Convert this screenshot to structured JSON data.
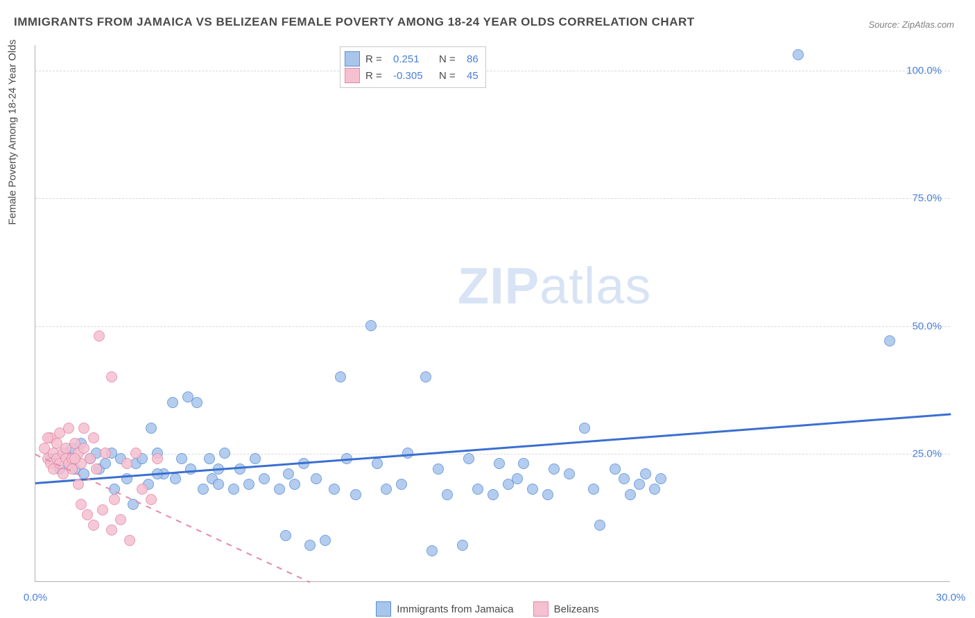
{
  "title": "IMMIGRANTS FROM JAMAICA VS BELIZEAN FEMALE POVERTY AMONG 18-24 YEAR OLDS CORRELATION CHART",
  "source": "Source: ZipAtlas.com",
  "yaxis_title": "Female Poverty Among 18-24 Year Olds",
  "watermark_a": "ZIP",
  "watermark_b": "atlas",
  "chart": {
    "type": "scatter",
    "xlim": [
      0,
      30
    ],
    "ylim": [
      0,
      105
    ],
    "xticks": [
      {
        "v": 0,
        "label": "0.0%"
      },
      {
        "v": 30,
        "label": "30.0%"
      }
    ],
    "yticks": [
      {
        "v": 25,
        "label": "25.0%"
      },
      {
        "v": 50,
        "label": "50.0%"
      },
      {
        "v": 75,
        "label": "75.0%"
      },
      {
        "v": 100,
        "label": "100.0%"
      }
    ],
    "grid_color": "#d8d8d8",
    "axis_color": "#b0b0b0",
    "background": "#ffffff",
    "marker_radius": 8,
    "marker_fill_opacity": 0.35,
    "series": [
      {
        "name": "Immigrants from Jamaica",
        "color": "#5b8fd8",
        "fill": "#a8c5ec",
        "R": "0.251",
        "N": "86",
        "trend": {
          "x1": 0,
          "y1": 19.5,
          "x2": 30,
          "y2": 33,
          "dash": false,
          "width": 2.5,
          "color": "#3a6fd0"
        },
        "points": [
          [
            0.5,
            24
          ],
          [
            0.8,
            22
          ],
          [
            1.0,
            25
          ],
          [
            1.1,
            23
          ],
          [
            1.2,
            26
          ],
          [
            1.3,
            22
          ],
          [
            1.5,
            27
          ],
          [
            1.6,
            21
          ],
          [
            1.8,
            24
          ],
          [
            2.0,
            25
          ],
          [
            2.1,
            22
          ],
          [
            2.3,
            23
          ],
          [
            2.5,
            25
          ],
          [
            2.6,
            18
          ],
          [
            2.8,
            24
          ],
          [
            3.0,
            20
          ],
          [
            3.2,
            15
          ],
          [
            3.3,
            23
          ],
          [
            3.5,
            24
          ],
          [
            3.7,
            19
          ],
          [
            3.8,
            30
          ],
          [
            4.0,
            25
          ],
          [
            4.2,
            21
          ],
          [
            4.5,
            35
          ],
          [
            4.6,
            20
          ],
          [
            4.8,
            24
          ],
          [
            5.0,
            36
          ],
          [
            5.1,
            22
          ],
          [
            5.3,
            35
          ],
          [
            5.5,
            18
          ],
          [
            5.7,
            24
          ],
          [
            5.8,
            20
          ],
          [
            6.0,
            19
          ],
          [
            6.2,
            25
          ],
          [
            6.5,
            18
          ],
          [
            6.7,
            22
          ],
          [
            7.0,
            19
          ],
          [
            7.2,
            24
          ],
          [
            7.5,
            20
          ],
          [
            8.0,
            18
          ],
          [
            8.2,
            9
          ],
          [
            8.3,
            21
          ],
          [
            8.5,
            19
          ],
          [
            8.8,
            23
          ],
          [
            9.0,
            7
          ],
          [
            9.2,
            20
          ],
          [
            9.5,
            8
          ],
          [
            9.8,
            18
          ],
          [
            10.0,
            40
          ],
          [
            10.2,
            24
          ],
          [
            10.5,
            17
          ],
          [
            11.0,
            50
          ],
          [
            11.2,
            23
          ],
          [
            11.5,
            18
          ],
          [
            12.0,
            19
          ],
          [
            12.2,
            25
          ],
          [
            12.8,
            40
          ],
          [
            13.0,
            6
          ],
          [
            13.2,
            22
          ],
          [
            13.5,
            17
          ],
          [
            14.0,
            7
          ],
          [
            14.2,
            24
          ],
          [
            14.5,
            18
          ],
          [
            15.0,
            17
          ],
          [
            15.2,
            23
          ],
          [
            15.5,
            19
          ],
          [
            15.8,
            20
          ],
          [
            16.0,
            23
          ],
          [
            16.3,
            18
          ],
          [
            16.8,
            17
          ],
          [
            17.0,
            22
          ],
          [
            17.5,
            21
          ],
          [
            18.0,
            30
          ],
          [
            18.3,
            18
          ],
          [
            18.5,
            11
          ],
          [
            19.0,
            22
          ],
          [
            19.3,
            20
          ],
          [
            19.5,
            17
          ],
          [
            19.8,
            19
          ],
          [
            20.0,
            21
          ],
          [
            20.3,
            18
          ],
          [
            20.5,
            20
          ],
          [
            25.0,
            103
          ],
          [
            28.0,
            47
          ],
          [
            4.0,
            21
          ],
          [
            6.0,
            22
          ]
        ]
      },
      {
        "name": "Belizeans",
        "color": "#e589a8",
        "fill": "#f5c0d0",
        "R": "-0.305",
        "N": "45",
        "trend": {
          "x1": 0,
          "y1": 25,
          "x2": 9,
          "y2": 0,
          "dash": true,
          "width": 2,
          "color": "#e589a8"
        },
        "points": [
          [
            0.3,
            26
          ],
          [
            0.4,
            24
          ],
          [
            0.5,
            23
          ],
          [
            0.5,
            28
          ],
          [
            0.6,
            25
          ],
          [
            0.6,
            22
          ],
          [
            0.7,
            27
          ],
          [
            0.7,
            24
          ],
          [
            0.8,
            23
          ],
          [
            0.8,
            29
          ],
          [
            0.9,
            25
          ],
          [
            0.9,
            21
          ],
          [
            1.0,
            26
          ],
          [
            1.0,
            24
          ],
          [
            1.1,
            23
          ],
          [
            1.1,
            30
          ],
          [
            1.2,
            24
          ],
          [
            1.2,
            22
          ],
          [
            1.3,
            27
          ],
          [
            1.4,
            25
          ],
          [
            1.4,
            19
          ],
          [
            1.5,
            23
          ],
          [
            1.5,
            15
          ],
          [
            1.6,
            26
          ],
          [
            1.7,
            13
          ],
          [
            1.8,
            24
          ],
          [
            1.9,
            11
          ],
          [
            2.0,
            22
          ],
          [
            2.1,
            48
          ],
          [
            2.2,
            14
          ],
          [
            2.3,
            25
          ],
          [
            2.5,
            40
          ],
          [
            2.6,
            16
          ],
          [
            2.8,
            12
          ],
          [
            3.0,
            23
          ],
          [
            3.1,
            8
          ],
          [
            3.3,
            25
          ],
          [
            3.5,
            18
          ],
          [
            3.8,
            16
          ],
          [
            4.0,
            24
          ],
          [
            1.9,
            28
          ],
          [
            1.3,
            24
          ],
          [
            0.4,
            28
          ],
          [
            2.5,
            10
          ],
          [
            1.6,
            30
          ]
        ]
      }
    ]
  },
  "stats_legend": {
    "r_label": "R =",
    "n_label": "N ="
  },
  "bottom_legend": {
    "items": [
      "Immigrants from Jamaica",
      "Belizeans"
    ]
  }
}
